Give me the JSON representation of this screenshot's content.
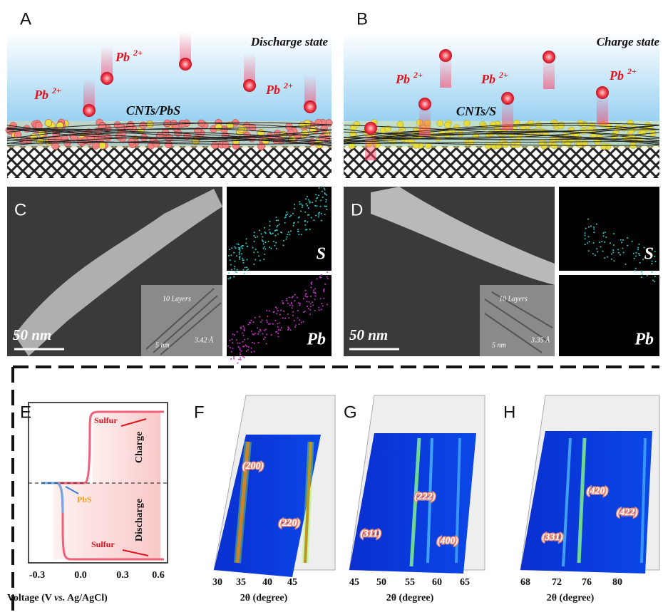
{
  "panels": {
    "a": {
      "label": "A",
      "state": "Discharge state",
      "ions": [
        {
          "base": "Pb",
          "sup": "2+"
        },
        {
          "base": "Pb",
          "sup": "2+"
        },
        {
          "base": "Pb",
          "sup": "2+"
        }
      ],
      "material": "CNTs/PbS"
    },
    "b": {
      "label": "B",
      "state": "Charge state",
      "ions": [
        {
          "base": "Pb",
          "sup": "2+"
        },
        {
          "base": "Pb",
          "sup": "2+"
        },
        {
          "base": "Pb",
          "sup": "2+"
        }
      ],
      "material": "CNTs/S"
    },
    "c": {
      "label": "C",
      "scale_bar": "50 nm",
      "inset_layers": "10 Layers",
      "inset_scale": "5 nm",
      "inset_spacing": "3.42 Å",
      "map_1": "S",
      "map_2": "Pb"
    },
    "d": {
      "label": "D",
      "scale_bar": "50 nm",
      "inset_layers": "10 Layers",
      "inset_scale": "5 nm",
      "inset_spacing": "3.35 Å",
      "map_1": "S",
      "map_2": "Pb"
    },
    "e": {
      "label": "E",
      "annotations": [
        "Sulfur",
        "PbS",
        "Sulfur"
      ],
      "regions": [
        "Charge",
        "Discharge"
      ],
      "xticks": [
        "-0.3",
        "0.0",
        "0.3",
        "0.6"
      ],
      "xlabel": {
        "pre": "Voltage (V ",
        "italic": "vs.",
        "post": " Ag/AgCl)"
      }
    },
    "f": {
      "label": "F",
      "peaks": [
        "(200)",
        "(220)"
      ],
      "xticks": [
        "30",
        "35",
        "40",
        "45"
      ],
      "xlabel": "2θ (degree)"
    },
    "g": {
      "label": "G",
      "peaks": [
        "(222)",
        "(311)",
        "(400)"
      ],
      "xticks": [
        "45",
        "50",
        "55",
        "60",
        "65"
      ],
      "xlabel": "2θ (degree)"
    },
    "h": {
      "label": "H",
      "peaks": [
        "(420)",
        "(331)",
        "(422)"
      ],
      "xticks": [
        "68",
        "72",
        "76",
        "80"
      ],
      "xlabel": "2θ (degree)"
    }
  }
}
